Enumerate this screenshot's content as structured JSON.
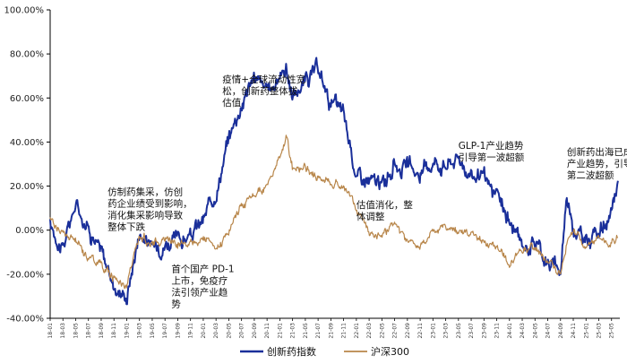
{
  "chart_data": {
    "type": "line",
    "title": "",
    "xlabel": "",
    "ylabel": "",
    "ylim": [
      -0.4,
      1.0
    ],
    "y_ticks": [
      "-40.00%",
      "-20.00%",
      "0.00%",
      "20.00%",
      "40.00%",
      "60.00%",
      "80.00%",
      "100.00%"
    ],
    "x_ticks": [
      "18-01",
      "18-03",
      "18-05",
      "18-07",
      "18-09",
      "18-11",
      "19-01",
      "19-03",
      "19-05",
      "19-07",
      "19-09",
      "19-11",
      "20-01",
      "20-03",
      "20-05",
      "20-07",
      "20-09",
      "20-11",
      "21-01",
      "21-03",
      "21-05",
      "21-07",
      "21-09",
      "21-11",
      "22-01",
      "22-03",
      "22-05",
      "22-07",
      "22-09",
      "22-11",
      "23-01",
      "23-03",
      "23-05",
      "23-07",
      "23-09",
      "23-11",
      "24-01",
      "24-03",
      "24-05",
      "24-07",
      "24-09",
      "24-11",
      "25-01",
      "25-03",
      "25-05"
    ],
    "grid": false,
    "legend_position": "bottom",
    "series": [
      {
        "name": "创新药指数",
        "color": "#1a2f9a",
        "x": [
          "18-01",
          "18-03",
          "18-05",
          "18-07",
          "18-09",
          "18-11",
          "19-01",
          "19-03",
          "19-05",
          "19-07",
          "19-09",
          "19-11",
          "20-01",
          "20-03",
          "20-05",
          "20-07",
          "20-08",
          "20-09",
          "20-11",
          "21-01",
          "21-02",
          "21-03",
          "21-05",
          "21-07",
          "21-09",
          "21-11",
          "22-01",
          "22-03",
          "22-05",
          "22-07",
          "22-09",
          "22-11",
          "23-01",
          "23-03",
          "23-05",
          "23-07",
          "23-09",
          "23-11",
          "24-01",
          "24-03",
          "24-05",
          "24-07",
          "24-09",
          "24-10",
          "24-11",
          "25-01",
          "25-03",
          "25-05",
          "25-06"
        ],
        "values": [
          0.02,
          -0.08,
          0.12,
          0.02,
          -0.1,
          -0.25,
          -0.3,
          0.0,
          -0.08,
          -0.05,
          -0.05,
          -0.03,
          0.04,
          0.18,
          0.42,
          0.58,
          0.65,
          0.7,
          0.62,
          0.7,
          0.75,
          0.6,
          0.68,
          0.72,
          0.58,
          0.52,
          0.25,
          0.22,
          0.2,
          0.3,
          0.28,
          0.25,
          0.32,
          0.3,
          0.33,
          0.26,
          0.22,
          0.15,
          0.04,
          -0.08,
          -0.04,
          -0.15,
          -0.18,
          0.17,
          0.02,
          -0.05,
          0.0,
          0.05,
          0.22
        ]
      },
      {
        "name": "沪深300",
        "color": "#b8864a",
        "x": [
          "18-01",
          "18-03",
          "18-05",
          "18-07",
          "18-09",
          "18-11",
          "19-01",
          "19-03",
          "19-05",
          "19-07",
          "19-09",
          "19-11",
          "20-01",
          "20-03",
          "20-05",
          "20-07",
          "20-09",
          "20-11",
          "21-01",
          "21-02",
          "21-03",
          "21-05",
          "21-07",
          "21-09",
          "21-11",
          "22-01",
          "22-03",
          "22-05",
          "22-07",
          "22-09",
          "22-11",
          "23-01",
          "23-03",
          "23-05",
          "23-07",
          "23-09",
          "23-11",
          "24-01",
          "24-03",
          "24-05",
          "24-07",
          "24-09",
          "24-10",
          "24-11",
          "25-01",
          "25-03",
          "25-05",
          "25-06"
        ],
        "values": [
          0.05,
          -0.02,
          -0.05,
          -0.12,
          -0.15,
          -0.22,
          -0.25,
          -0.02,
          -0.06,
          -0.04,
          -0.05,
          -0.05,
          -0.03,
          -0.1,
          0.0,
          0.12,
          0.15,
          0.2,
          0.32,
          0.42,
          0.28,
          0.28,
          0.24,
          0.22,
          0.2,
          0.1,
          0.0,
          -0.02,
          0.02,
          -0.06,
          -0.08,
          0.0,
          0.02,
          0.0,
          -0.03,
          -0.05,
          -0.08,
          -0.15,
          -0.1,
          -0.08,
          -0.14,
          -0.2,
          -0.05,
          -0.02,
          -0.05,
          -0.04,
          -0.05,
          -0.04
        ]
      }
    ],
    "annotations": [
      {
        "lines": [
          "仿制药集采，仿创",
          "药企业绩受到影响，",
          "消化集采影响导致",
          "整体下跌"
        ],
        "anchor_x": "18-10",
        "anchor_y": 0.16
      },
      {
        "lines": [
          "首个国产 PD-1",
          "上市，免疫疗",
          "法引领产业趋",
          "势"
        ],
        "anchor_x": "19-08",
        "anchor_y": -0.19
      },
      {
        "lines": [
          "疫情+全球流动性宽",
          "松，创新药整体拔",
          "估值"
        ],
        "anchor_x": "20-04",
        "anchor_y": 0.67
      },
      {
        "lines": [
          "估值消化，整",
          "体调整"
        ],
        "anchor_x": "22-01",
        "anchor_y": 0.1
      },
      {
        "lines": [
          "GLP-1产业趋势",
          "引导第一波超额"
        ],
        "anchor_x": "23-05",
        "anchor_y": 0.37
      },
      {
        "lines": [
          "创新药出海已成",
          "产业趋势，引导",
          "第二波超额"
        ],
        "anchor_x": "24-10",
        "anchor_y": 0.34
      }
    ]
  }
}
